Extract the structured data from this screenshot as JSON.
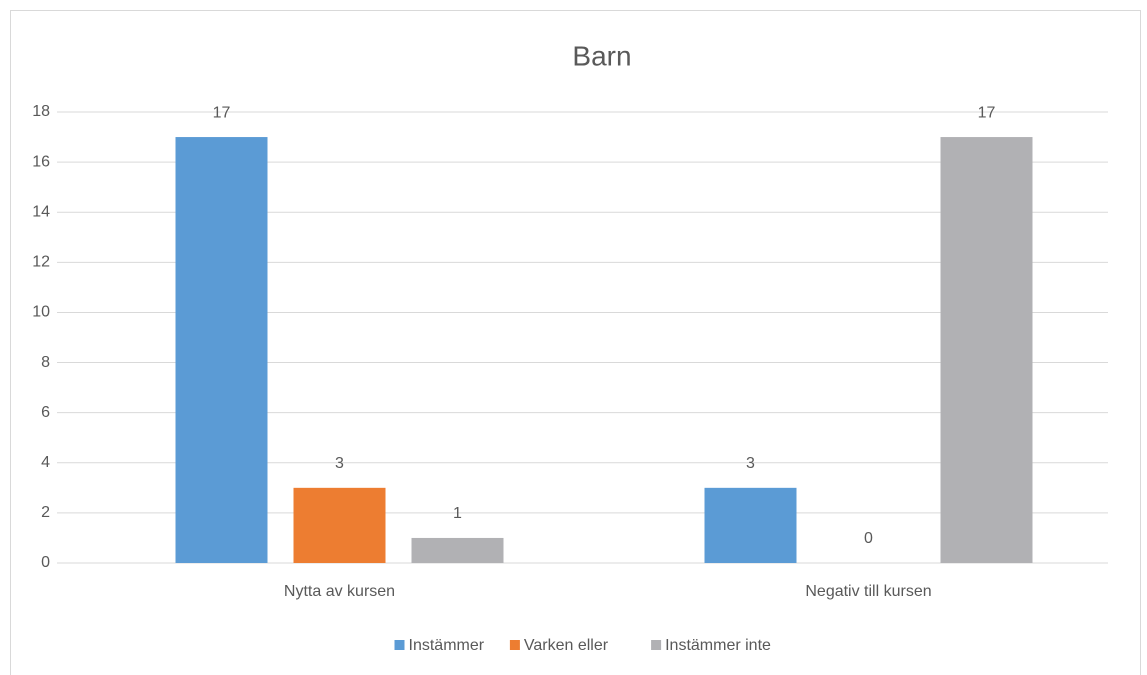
{
  "chart_data": {
    "type": "bar",
    "title": "Barn",
    "categories": [
      "Nytta av kursen",
      "Negativ till kursen"
    ],
    "series": [
      {
        "name": "Instämmer",
        "color": "#5b9bd5",
        "values": [
          17,
          3
        ]
      },
      {
        "name": "Varken eller",
        "color": "#ed7d31",
        "values": [
          3,
          0
        ]
      },
      {
        "name": "Instämmer inte",
        "color": "#b1b1b4",
        "values": [
          1,
          17
        ]
      }
    ],
    "ylim": [
      0,
      18
    ],
    "yticks": [
      0,
      2,
      4,
      6,
      8,
      10,
      12,
      14,
      16,
      18
    ],
    "grid": true,
    "legend": "bottom",
    "data_labels": true
  }
}
